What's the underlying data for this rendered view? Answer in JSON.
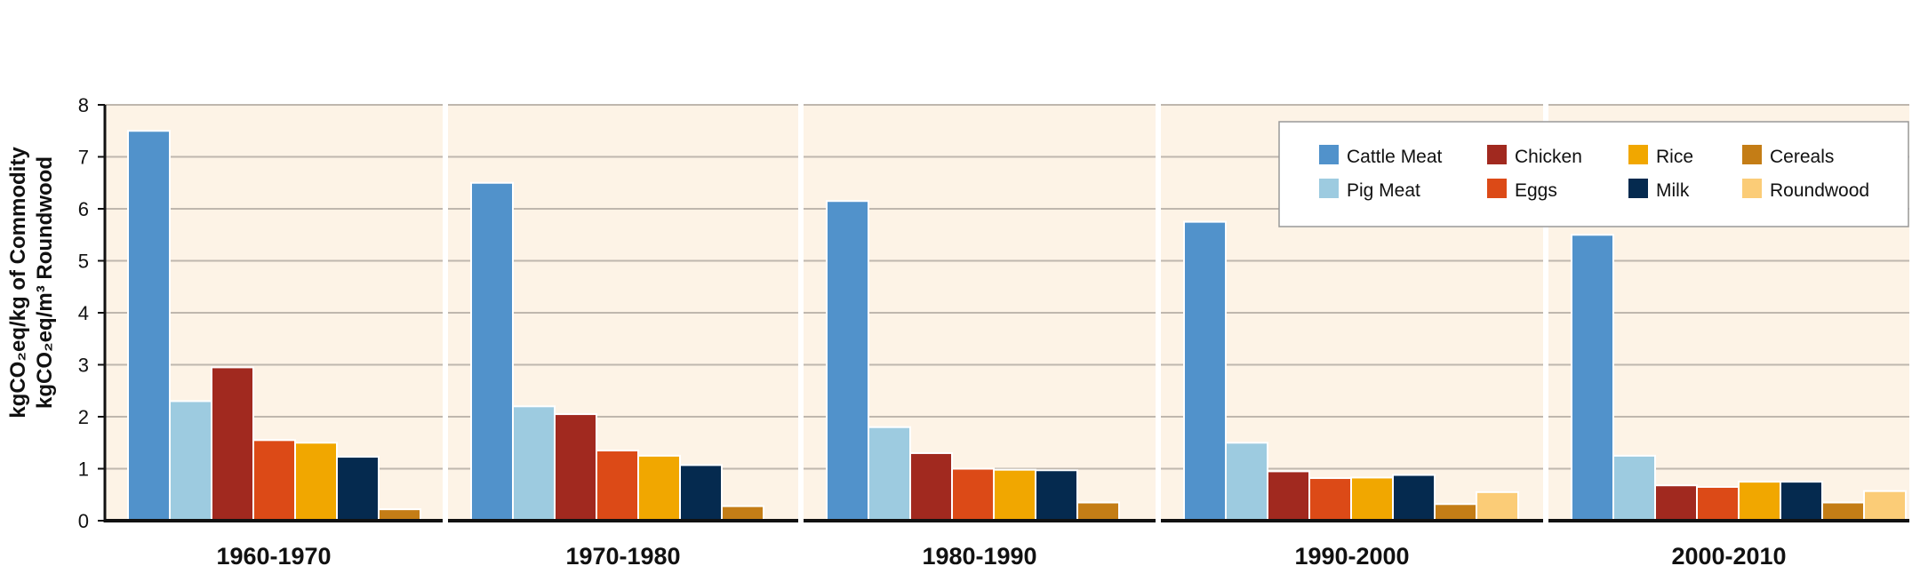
{
  "chart_data": {
    "type": "bar",
    "categories": [
      "1960-1970",
      "1970-1980",
      "1980-1990",
      "1990-2000",
      "2000-2010"
    ],
    "series": [
      {
        "name": "Cattle Meat",
        "color": "#5192CB",
        "values": [
          7.5,
          6.5,
          6.15,
          5.75,
          5.5
        ]
      },
      {
        "name": "Pig Meat",
        "color": "#9DCBE0",
        "values": [
          2.3,
          2.2,
          1.8,
          1.5,
          1.25
        ]
      },
      {
        "name": "Chicken",
        "color": "#A1291F",
        "values": [
          2.95,
          2.05,
          1.3,
          0.95,
          0.68
        ]
      },
      {
        "name": "Eggs",
        "color": "#DC4A17",
        "values": [
          1.55,
          1.35,
          1.0,
          0.82,
          0.65
        ]
      },
      {
        "name": "Rice",
        "color": "#F1A700",
        "values": [
          1.5,
          1.25,
          0.98,
          0.83,
          0.75
        ]
      },
      {
        "name": "Milk",
        "color": "#052A4F",
        "values": [
          1.23,
          1.07,
          0.97,
          0.88,
          0.75
        ]
      },
      {
        "name": "Cereals",
        "color": "#C47D16",
        "values": [
          0.22,
          0.28,
          0.35,
          0.32,
          0.35
        ]
      },
      {
        "name": "Roundwood",
        "color": "#FBCC77",
        "values": [
          null,
          null,
          null,
          0.55,
          0.57
        ]
      }
    ],
    "ylabel_line1": "kgCO₂eq/kg of Commodity",
    "ylabel_line2": "kgCO₂eq/m³ Roundwood",
    "xlabel": "",
    "ylim": [
      0,
      8
    ],
    "yticks": [
      0,
      1,
      2,
      3,
      4,
      5,
      6,
      7,
      8
    ],
    "grid": true,
    "legend_position": "top-right",
    "legend_columns": [
      [
        "Cattle Meat",
        "Pig Meat"
      ],
      [
        "Chicken",
        "Eggs"
      ],
      [
        "Rice",
        "Milk"
      ],
      [
        "Cereals",
        "Roundwood"
      ]
    ],
    "panel_background": "#FDF3E6",
    "grid_color": "#BFB7AE"
  }
}
